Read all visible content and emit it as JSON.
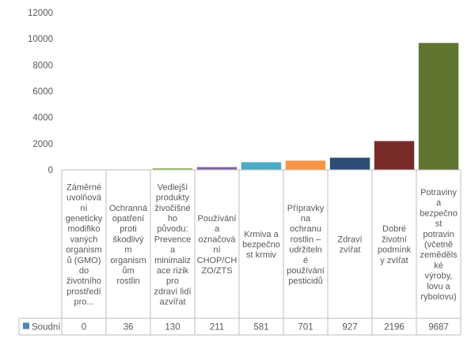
{
  "chart_data": {
    "type": "bar",
    "title": "",
    "xlabel": "",
    "ylabel": "",
    "ylim": [
      0,
      12000
    ],
    "yticks": [
      0,
      2000,
      4000,
      6000,
      8000,
      10000,
      12000
    ],
    "grid": false,
    "data_table": true,
    "categories": [
      "Záměrné uvolňování geneticky modifikovaných organismů (GMO) do životního prostředí pro…",
      "Ochranná opatření proti škodlivým organismům rostlin",
      "Vedlejší produkty živočišného původu: Prevence a minimalizace rizik pro zdraví lidí azvířat",
      "Používání a označování CHOP/CHZO/ZTS",
      "Krmiva a bezpečnost krmiv",
      "Přípravky na ochranu rostlin – udržitelné používání pesticidů",
      "Zdraví zvířat",
      "Dobré životní podmínky zvířat",
      "Potraviny a bezpečnost potravin (včetně zemědělské výroby, lovu a rybolovu)"
    ],
    "category_lines": [
      [
        "Záměrné",
        "uvolňová",
        "ní",
        "geneticky",
        "modifiko",
        "vaných",
        "organism",
        "ů (GMO)",
        "do",
        "životního",
        "prostředí",
        "pro..."
      ],
      [
        "Ochranná",
        "opatření",
        "proti",
        "škodlivý",
        "m",
        "organism",
        "ům",
        "rostlin"
      ],
      [
        "Vedlejší",
        "produkty",
        "živočišné",
        "ho",
        "původu:",
        "Prevence",
        "a",
        "minimaliz",
        "ace rizik",
        "pro",
        "zdraví lidí",
        "azvířat"
      ],
      [
        "Používání",
        "a",
        "označová",
        "ní",
        "CHOP/CH",
        "ZO/ZTS"
      ],
      [
        "Krmiva a",
        "bezpečno",
        "st krmiv"
      ],
      [
        "Přípravky",
        "na",
        "ochranu",
        "rostlin –",
        "udržiteln",
        "é",
        "používání",
        "pesticidů"
      ],
      [
        "Zdraví",
        "zvířat"
      ],
      [
        "Dobré",
        "životní",
        "podmínk",
        "y zvířat"
      ],
      [
        "Potraviny",
        "a",
        "bezpečno",
        "st",
        "potravin",
        "(včetně",
        "zeměděls",
        "ké",
        "výroby,",
        "lovu a",
        "rybolovu)"
      ]
    ],
    "series": [
      {
        "name": "Soudní",
        "values": [
          0,
          36,
          130,
          211,
          581,
          701,
          927,
          2196,
          9687
        ]
      }
    ],
    "bar_colors": [
      "#4472c4",
      "#9bbb59",
      "#9bbb59",
      "#8064a2",
      "#4bacc6",
      "#f79646",
      "#2c4d75",
      "#772c2a",
      "#5f7530"
    ],
    "legend_key_color": "#4f81bd"
  }
}
